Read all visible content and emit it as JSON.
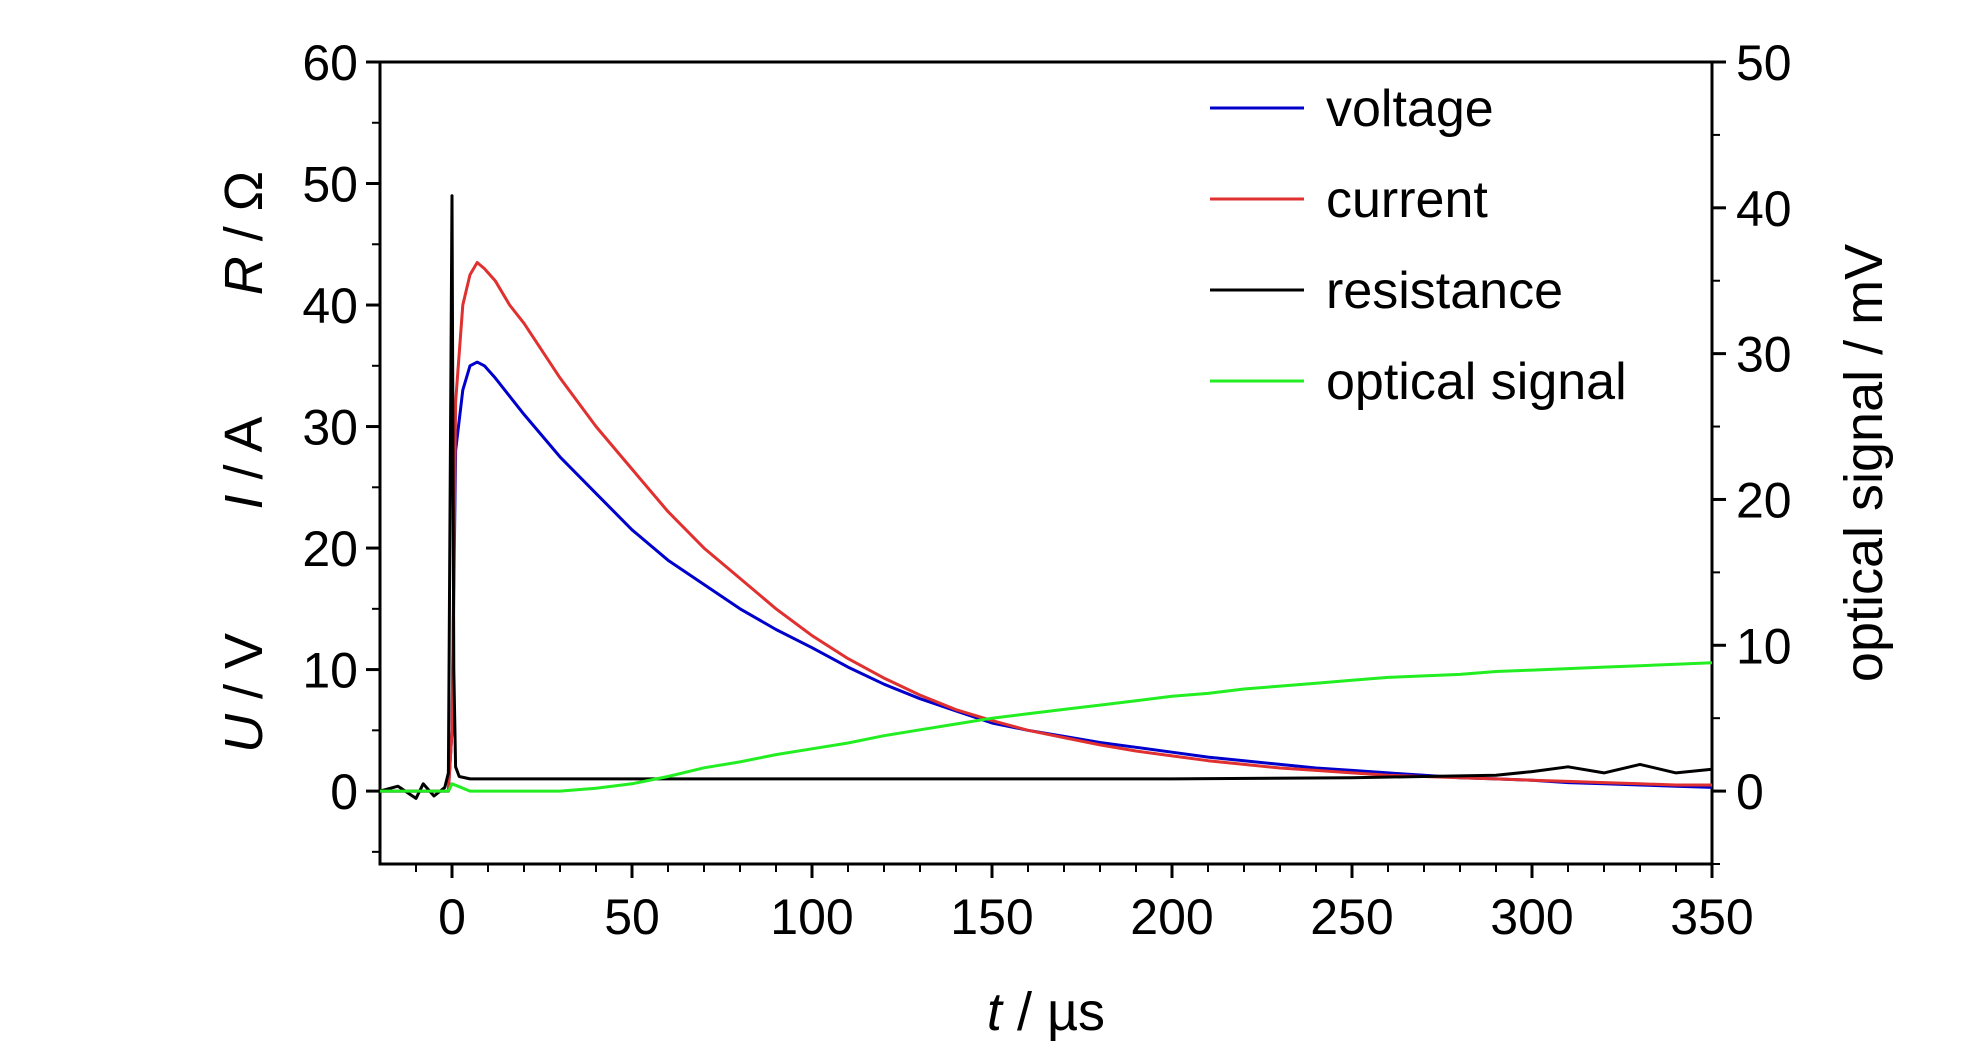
{
  "chart_data": {
    "type": "line",
    "xlabel": {
      "var": "t",
      "unit": " / µs"
    },
    "ylabel_left": [
      {
        "var": "U",
        "unit": " / V"
      },
      {
        "var": "I",
        "unit": " / A"
      },
      {
        "var": "R",
        "unit": " / Ω"
      }
    ],
    "ylabel_right": "optical signal / mV",
    "xlim": [
      -20,
      350
    ],
    "ylim_left": [
      -6,
      60
    ],
    "ylim_right": [
      -5,
      50
    ],
    "xticks": [
      "0",
      "50",
      "100",
      "150",
      "200",
      "250",
      "300",
      "350"
    ],
    "yticks_left": [
      "0",
      "10",
      "20",
      "30",
      "40",
      "50",
      "60"
    ],
    "yticks_right": [
      "0",
      "10",
      "20",
      "30",
      "40",
      "50"
    ],
    "legend_position": "top-right",
    "grid": false,
    "series": [
      {
        "name": "voltage",
        "color": "#0000cc",
        "axis": "left",
        "x": [
          -20,
          -10,
          -1,
          0,
          1,
          3,
          5,
          7,
          9,
          12,
          16,
          20,
          30,
          40,
          50,
          60,
          70,
          80,
          90,
          100,
          110,
          120,
          130,
          140,
          150,
          160,
          170,
          180,
          190,
          200,
          210,
          220,
          230,
          240,
          250,
          260,
          270,
          280,
          290,
          300,
          310,
          320,
          330,
          340,
          350
        ],
        "y": [
          0,
          0,
          0,
          5,
          28,
          33,
          35,
          35.3,
          35,
          34,
          32.5,
          31,
          27.5,
          24.5,
          21.5,
          19,
          17,
          15,
          13.3,
          11.8,
          10.2,
          8.8,
          7.6,
          6.6,
          5.6,
          5.0,
          4.5,
          4.0,
          3.6,
          3.2,
          2.8,
          2.5,
          2.2,
          1.9,
          1.7,
          1.5,
          1.3,
          1.1,
          1.0,
          0.9,
          0.7,
          0.6,
          0.5,
          0.4,
          0.3
        ]
      },
      {
        "name": "current",
        "color": "#e03030",
        "axis": "left",
        "x": [
          -20,
          -10,
          -1,
          0,
          1,
          3,
          5,
          7,
          9,
          12,
          16,
          20,
          30,
          40,
          50,
          60,
          70,
          80,
          90,
          100,
          110,
          120,
          130,
          140,
          150,
          160,
          170,
          180,
          190,
          200,
          210,
          220,
          230,
          240,
          250,
          260,
          270,
          280,
          290,
          300,
          310,
          320,
          330,
          340,
          350
        ],
        "y": [
          0,
          0,
          0,
          5,
          32,
          40,
          42.5,
          43.5,
          43,
          42,
          40,
          38.5,
          34,
          30,
          26.5,
          23,
          20,
          17.5,
          15,
          12.8,
          10.9,
          9.3,
          7.9,
          6.7,
          5.8,
          5.0,
          4.4,
          3.8,
          3.3,
          2.9,
          2.5,
          2.2,
          1.9,
          1.7,
          1.5,
          1.3,
          1.2,
          1.1,
          1.0,
          0.9,
          0.8,
          0.7,
          0.6,
          0.5,
          0.5
        ]
      },
      {
        "name": "resistance",
        "color": "#000000",
        "axis": "left",
        "x": [
          -20,
          -15,
          -10,
          -8,
          -5,
          -2,
          -1,
          0,
          0.5,
          1,
          2,
          5,
          50,
          100,
          150,
          200,
          250,
          270,
          290,
          300,
          310,
          320,
          330,
          340,
          350
        ],
        "y": [
          0,
          0.4,
          -0.6,
          0.6,
          -0.4,
          0.3,
          1.5,
          49,
          10,
          2,
          1.2,
          1.0,
          1.0,
          1.0,
          1.0,
          1.0,
          1.1,
          1.2,
          1.3,
          1.6,
          2.0,
          1.5,
          2.2,
          1.5,
          1.8
        ]
      },
      {
        "name": "optical signal",
        "color": "#22ee22",
        "axis": "right",
        "x": [
          -20,
          -10,
          -1,
          0,
          2,
          5,
          10,
          20,
          30,
          40,
          50,
          60,
          70,
          80,
          90,
          100,
          110,
          120,
          130,
          140,
          150,
          160,
          170,
          180,
          190,
          200,
          210,
          220,
          230,
          240,
          250,
          260,
          270,
          280,
          290,
          300,
          310,
          320,
          330,
          340,
          350
        ],
        "y": [
          0,
          0,
          0,
          0.5,
          0.3,
          0,
          0,
          0,
          0,
          0.2,
          0.5,
          1.0,
          1.6,
          2.0,
          2.5,
          2.9,
          3.3,
          3.8,
          4.2,
          4.6,
          5.0,
          5.3,
          5.6,
          5.9,
          6.2,
          6.5,
          6.7,
          7.0,
          7.2,
          7.4,
          7.6,
          7.8,
          7.9,
          8.0,
          8.2,
          8.3,
          8.4,
          8.5,
          8.6,
          8.7,
          8.8
        ]
      }
    ]
  }
}
